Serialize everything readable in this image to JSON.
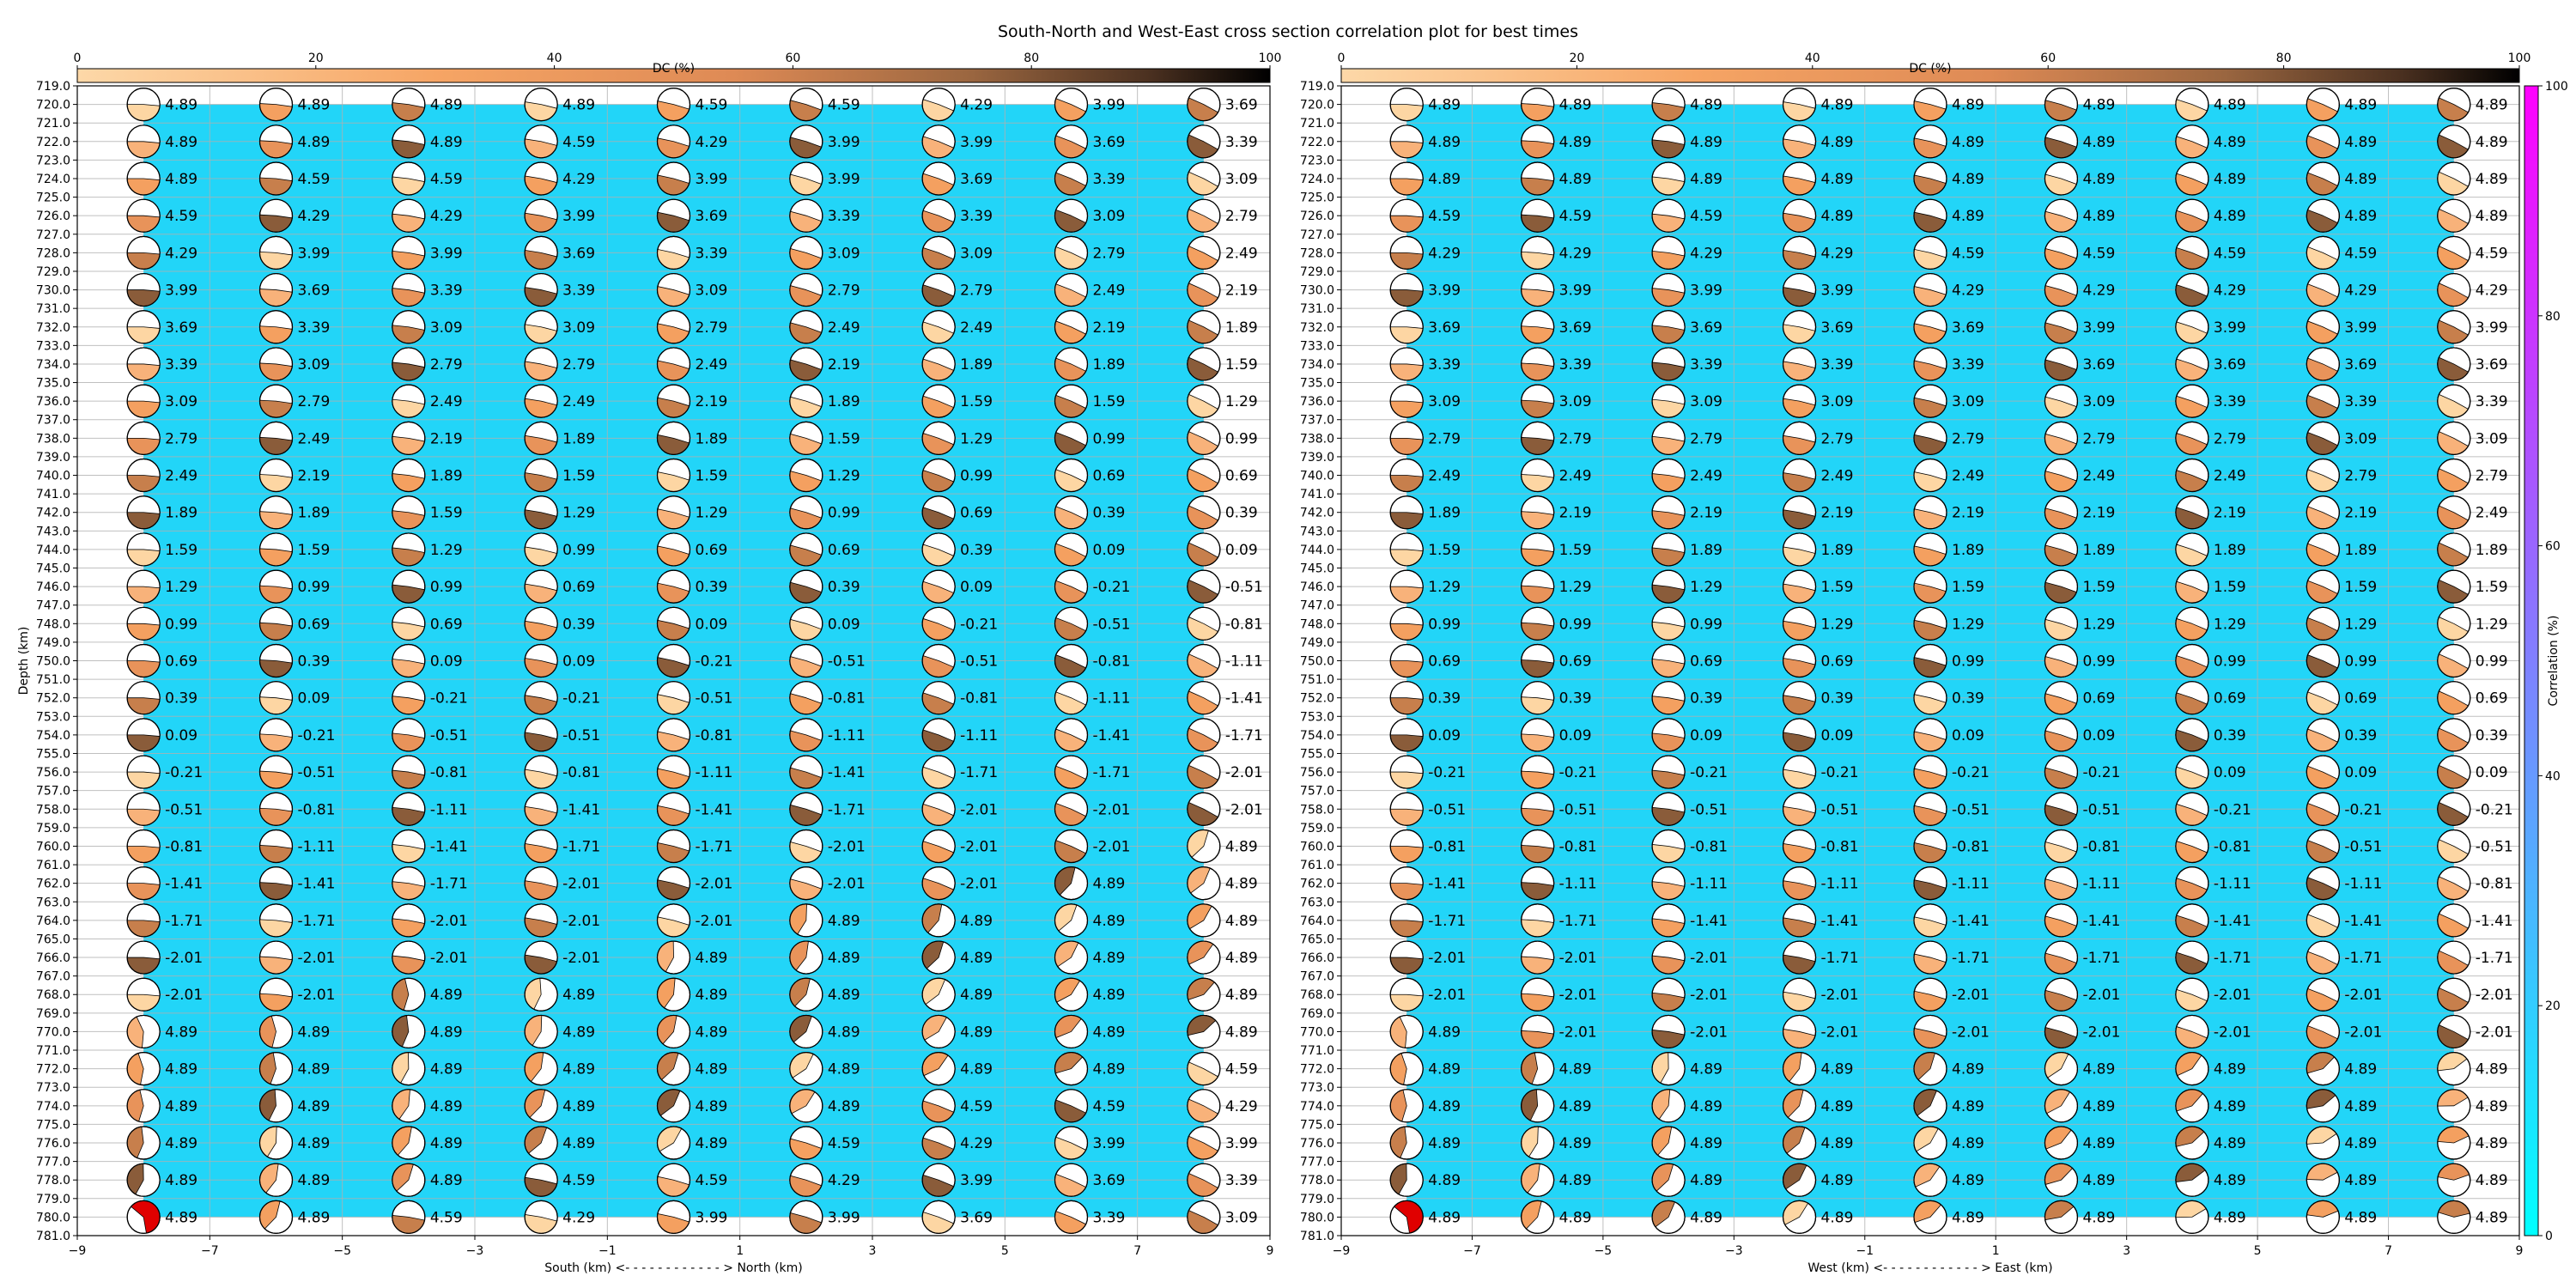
{
  "title": "South-North and West-East cross section correlation plot for best times",
  "colors": {
    "background": "#22d5f8",
    "dc_colormap": [
      "#fdd6a3",
      "#f5a060",
      "#e08a55",
      "#a06a40",
      "#5a3a25",
      "#000000"
    ],
    "correlation_colormap": [
      "#00ffff",
      "#ff00ff"
    ],
    "grid": "#b0b0b0",
    "best_event": "#e00000"
  },
  "chart_data": [
    {
      "type": "beachball-grid",
      "panel": "south-north",
      "xlabel": "South (km) <- - - - - - - - - - - - > North (km)",
      "ylabel": "Depth (km)",
      "xlim": [
        -9,
        9
      ],
      "ylim": [
        781,
        719
      ],
      "x_ticks": [
        "−9",
        "−7",
        "−5",
        "−3",
        "−1",
        "1",
        "3",
        "5",
        "7",
        "9"
      ],
      "y_ticks": [
        "719.0",
        "720.0",
        "721.0",
        "722.0",
        "723.0",
        "724.0",
        "725.0",
        "726.0",
        "727.0",
        "728.0",
        "729.0",
        "730.0",
        "731.0",
        "732.0",
        "733.0",
        "734.0",
        "735.0",
        "736.0",
        "737.0",
        "738.0",
        "739.0",
        "740.0",
        "741.0",
        "742.0",
        "743.0",
        "744.0",
        "745.0",
        "746.0",
        "747.0",
        "748.0",
        "749.0",
        "750.0",
        "751.0",
        "752.0",
        "753.0",
        "754.0",
        "755.0",
        "756.0",
        "757.0",
        "758.0",
        "759.0",
        "760.0",
        "761.0",
        "762.0",
        "763.0",
        "764.0",
        "765.0",
        "766.0",
        "767.0",
        "768.0",
        "769.0",
        "770.0",
        "771.0",
        "772.0",
        "773.0",
        "774.0",
        "775.0",
        "776.0",
        "777.0",
        "778.0",
        "779.0",
        "780.0",
        "781.0"
      ],
      "colorbar": {
        "label": "DC (%)",
        "ticks": [
          "0",
          "20",
          "40",
          "60",
          "80",
          "100"
        ]
      },
      "x": [
        -8,
        -6,
        -4,
        -2,
        0,
        2,
        4,
        6,
        8
      ],
      "depths": [
        720,
        722,
        724,
        726,
        728,
        730,
        732,
        734,
        736,
        738,
        740,
        742,
        744,
        746,
        748,
        750,
        752,
        754,
        756,
        758,
        760,
        762,
        764,
        766,
        768,
        770,
        772,
        774,
        776,
        778,
        780
      ],
      "time_labels": [
        [
          "4.89",
          "4.89",
          "4.89",
          "4.89",
          "4.59",
          "4.59",
          "4.29",
          "3.99",
          "3.69"
        ],
        [
          "4.89",
          "4.89",
          "4.89",
          "4.59",
          "4.29",
          "3.99",
          "3.99",
          "3.69",
          "3.39"
        ],
        [
          "4.89",
          "4.59",
          "4.59",
          "4.29",
          "3.99",
          "3.99",
          "3.69",
          "3.39",
          "3.09"
        ],
        [
          "4.59",
          "4.29",
          "4.29",
          "3.99",
          "3.69",
          "3.39",
          "3.39",
          "3.09",
          "2.79"
        ],
        [
          "4.29",
          "3.99",
          "3.99",
          "3.69",
          "3.39",
          "3.09",
          "3.09",
          "2.79",
          "2.49"
        ],
        [
          "3.99",
          "3.69",
          "3.39",
          "3.39",
          "3.09",
          "2.79",
          "2.79",
          "2.49",
          "2.19"
        ],
        [
          "3.69",
          "3.39",
          "3.09",
          "3.09",
          "2.79",
          "2.49",
          "2.49",
          "2.19",
          "1.89"
        ],
        [
          "3.39",
          "3.09",
          "2.79",
          "2.79",
          "2.49",
          "2.19",
          "1.89",
          "1.89",
          "1.59"
        ],
        [
          "3.09",
          "2.79",
          "2.49",
          "2.49",
          "2.19",
          "1.89",
          "1.59",
          "1.59",
          "1.29"
        ],
        [
          "2.79",
          "2.49",
          "2.19",
          "1.89",
          "1.89",
          "1.59",
          "1.29",
          "0.99",
          "0.99"
        ],
        [
          "2.49",
          "2.19",
          "1.89",
          "1.59",
          "1.59",
          "1.29",
          "0.99",
          "0.69",
          "0.69"
        ],
        [
          "1.89",
          "1.89",
          "1.59",
          "1.29",
          "1.29",
          "0.99",
          "0.69",
          "0.39",
          "0.39"
        ],
        [
          "1.59",
          "1.59",
          "1.29",
          "0.99",
          "0.69",
          "0.69",
          "0.39",
          "0.09",
          "0.09"
        ],
        [
          "1.29",
          "0.99",
          "0.99",
          "0.69",
          "0.39",
          "0.39",
          "0.09",
          "-0.21",
          "-0.51"
        ],
        [
          "0.99",
          "0.69",
          "0.69",
          "0.39",
          "0.09",
          "0.09",
          "-0.21",
          "-0.51",
          "-0.81"
        ],
        [
          "0.69",
          "0.39",
          "0.09",
          "0.09",
          "-0.21",
          "-0.51",
          "-0.51",
          "-0.81",
          "-1.11"
        ],
        [
          "0.39",
          "0.09",
          "-0.21",
          "-0.21",
          "-0.51",
          "-0.81",
          "-0.81",
          "-1.11",
          "-1.41"
        ],
        [
          "0.09",
          "-0.21",
          "-0.51",
          "-0.51",
          "-0.81",
          "-1.11",
          "-1.11",
          "-1.41",
          "-1.71"
        ],
        [
          "-0.21",
          "-0.51",
          "-0.81",
          "-0.81",
          "-1.11",
          "-1.41",
          "-1.71",
          "-1.71",
          "-2.01"
        ],
        [
          "-0.51",
          "-0.81",
          "-1.11",
          "-1.41",
          "-1.41",
          "-1.71",
          "-2.01",
          "-2.01",
          "-2.01"
        ],
        [
          "-0.81",
          "-1.11",
          "-1.41",
          "-1.71",
          "-1.71",
          "-2.01",
          "-2.01",
          "-2.01",
          "4.89"
        ],
        [
          "-1.41",
          "-1.41",
          "-1.71",
          "-2.01",
          "-2.01",
          "-2.01",
          "-2.01",
          "4.89",
          "4.89"
        ],
        [
          "-1.71",
          "-1.71",
          "-2.01",
          "-2.01",
          "-2.01",
          "4.89",
          "4.89",
          "4.89",
          "4.89"
        ],
        [
          "-2.01",
          "-2.01",
          "-2.01",
          "-2.01",
          "4.89",
          "4.89",
          "4.89",
          "4.89",
          "4.89"
        ],
        [
          "-2.01",
          "-2.01",
          "4.89",
          "4.89",
          "4.89",
          "4.89",
          "4.89",
          "4.89",
          "4.89"
        ],
        [
          "4.89",
          "4.89",
          "4.89",
          "4.89",
          "4.89",
          "4.89",
          "4.89",
          "4.89",
          "4.89"
        ],
        [
          "4.89",
          "4.89",
          "4.89",
          "4.89",
          "4.89",
          "4.89",
          "4.89",
          "4.89",
          "4.59"
        ],
        [
          "4.89",
          "4.89",
          "4.89",
          "4.89",
          "4.89",
          "4.89",
          "4.59",
          "4.59",
          "4.29"
        ],
        [
          "4.89",
          "4.89",
          "4.89",
          "4.89",
          "4.89",
          "4.59",
          "4.29",
          "3.99",
          "3.99"
        ],
        [
          "4.89",
          "4.89",
          "4.89",
          "4.59",
          "4.59",
          "4.29",
          "3.99",
          "3.69",
          "3.39"
        ],
        [
          "4.89",
          "4.89",
          "4.59",
          "4.29",
          "3.99",
          "3.99",
          "3.69",
          "3.39",
          "3.09"
        ]
      ]
    },
    {
      "type": "beachball-grid",
      "panel": "west-east",
      "xlabel": "West (km) <- - - - - - - - - - - - > East (km)",
      "ylabel": "",
      "xlim": [
        -9,
        9
      ],
      "ylim": [
        781,
        719
      ],
      "x_ticks": [
        "−9",
        "−7",
        "−5",
        "−3",
        "−1",
        "1",
        "3",
        "5",
        "7",
        "9"
      ],
      "y_ticks": [
        "719.0",
        "720.0",
        "721.0",
        "722.0",
        "723.0",
        "724.0",
        "725.0",
        "726.0",
        "727.0",
        "728.0",
        "729.0",
        "730.0",
        "731.0",
        "732.0",
        "733.0",
        "734.0",
        "735.0",
        "736.0",
        "737.0",
        "738.0",
        "739.0",
        "740.0",
        "741.0",
        "742.0",
        "743.0",
        "744.0",
        "745.0",
        "746.0",
        "747.0",
        "748.0",
        "749.0",
        "750.0",
        "751.0",
        "752.0",
        "753.0",
        "754.0",
        "755.0",
        "756.0",
        "757.0",
        "758.0",
        "759.0",
        "760.0",
        "761.0",
        "762.0",
        "763.0",
        "764.0",
        "765.0",
        "766.0",
        "767.0",
        "768.0",
        "769.0",
        "770.0",
        "771.0",
        "772.0",
        "773.0",
        "774.0",
        "775.0",
        "776.0",
        "777.0",
        "778.0",
        "779.0",
        "780.0",
        "781.0"
      ],
      "colorbar": {
        "label": "DC (%)",
        "ticks": [
          "0",
          "20",
          "40",
          "60",
          "80",
          "100"
        ]
      },
      "correlation_colorbar": {
        "label": "Correlation (%)",
        "ticks": [
          "0",
          "20",
          "40",
          "60",
          "80",
          "100"
        ]
      },
      "x": [
        -8,
        -6,
        -4,
        -2,
        0,
        2,
        4,
        6,
        8
      ],
      "depths": [
        720,
        722,
        724,
        726,
        728,
        730,
        732,
        734,
        736,
        738,
        740,
        742,
        744,
        746,
        748,
        750,
        752,
        754,
        756,
        758,
        760,
        762,
        764,
        766,
        768,
        770,
        772,
        774,
        776,
        778,
        780
      ],
      "time_labels": [
        [
          "4.89",
          "4.89",
          "4.89",
          "4.89",
          "4.89",
          "4.89",
          "4.89",
          "4.89",
          "4.89"
        ],
        [
          "4.89",
          "4.89",
          "4.89",
          "4.89",
          "4.89",
          "4.89",
          "4.89",
          "4.89",
          "4.89"
        ],
        [
          "4.89",
          "4.89",
          "4.89",
          "4.89",
          "4.89",
          "4.89",
          "4.89",
          "4.89",
          "4.89"
        ],
        [
          "4.59",
          "4.59",
          "4.59",
          "4.89",
          "4.89",
          "4.89",
          "4.89",
          "4.89",
          "4.89"
        ],
        [
          "4.29",
          "4.29",
          "4.29",
          "4.29",
          "4.59",
          "4.59",
          "4.59",
          "4.59",
          "4.59"
        ],
        [
          "3.99",
          "3.99",
          "3.99",
          "3.99",
          "4.29",
          "4.29",
          "4.29",
          "4.29",
          "4.29"
        ],
        [
          "3.69",
          "3.69",
          "3.69",
          "3.69",
          "3.69",
          "3.99",
          "3.99",
          "3.99",
          "3.99"
        ],
        [
          "3.39",
          "3.39",
          "3.39",
          "3.39",
          "3.39",
          "3.69",
          "3.69",
          "3.69",
          "3.69"
        ],
        [
          "3.09",
          "3.09",
          "3.09",
          "3.09",
          "3.09",
          "3.09",
          "3.39",
          "3.39",
          "3.39"
        ],
        [
          "2.79",
          "2.79",
          "2.79",
          "2.79",
          "2.79",
          "2.79",
          "2.79",
          "3.09",
          "3.09"
        ],
        [
          "2.49",
          "2.49",
          "2.49",
          "2.49",
          "2.49",
          "2.49",
          "2.49",
          "2.79",
          "2.79"
        ],
        [
          "1.89",
          "2.19",
          "2.19",
          "2.19",
          "2.19",
          "2.19",
          "2.19",
          "2.19",
          "2.49"
        ],
        [
          "1.59",
          "1.59",
          "1.89",
          "1.89",
          "1.89",
          "1.89",
          "1.89",
          "1.89",
          "1.89"
        ],
        [
          "1.29",
          "1.29",
          "1.29",
          "1.59",
          "1.59",
          "1.59",
          "1.59",
          "1.59",
          "1.59"
        ],
        [
          "0.99",
          "0.99",
          "0.99",
          "1.29",
          "1.29",
          "1.29",
          "1.29",
          "1.29",
          "1.29"
        ],
        [
          "0.69",
          "0.69",
          "0.69",
          "0.69",
          "0.99",
          "0.99",
          "0.99",
          "0.99",
          "0.99"
        ],
        [
          "0.39",
          "0.39",
          "0.39",
          "0.39",
          "0.39",
          "0.69",
          "0.69",
          "0.69",
          "0.69"
        ],
        [
          "0.09",
          "0.09",
          "0.09",
          "0.09",
          "0.09",
          "0.09",
          "0.39",
          "0.39",
          "0.39"
        ],
        [
          "-0.21",
          "-0.21",
          "-0.21",
          "-0.21",
          "-0.21",
          "-0.21",
          "0.09",
          "0.09",
          "0.09"
        ],
        [
          "-0.51",
          "-0.51",
          "-0.51",
          "-0.51",
          "-0.51",
          "-0.51",
          "-0.21",
          "-0.21",
          "-0.21"
        ],
        [
          "-0.81",
          "-0.81",
          "-0.81",
          "-0.81",
          "-0.81",
          "-0.81",
          "-0.81",
          "-0.51",
          "-0.51"
        ],
        [
          "-1.41",
          "-1.11",
          "-1.11",
          "-1.11",
          "-1.11",
          "-1.11",
          "-1.11",
          "-1.11",
          "-0.81"
        ],
        [
          "-1.71",
          "-1.71",
          "-1.41",
          "-1.41",
          "-1.41",
          "-1.41",
          "-1.41",
          "-1.41",
          "-1.41"
        ],
        [
          "-2.01",
          "-2.01",
          "-2.01",
          "-1.71",
          "-1.71",
          "-1.71",
          "-1.71",
          "-1.71",
          "-1.71"
        ],
        [
          "-2.01",
          "-2.01",
          "-2.01",
          "-2.01",
          "-2.01",
          "-2.01",
          "-2.01",
          "-2.01",
          "-2.01"
        ],
        [
          "4.89",
          "-2.01",
          "-2.01",
          "-2.01",
          "-2.01",
          "-2.01",
          "-2.01",
          "-2.01",
          "-2.01"
        ],
        [
          "4.89",
          "4.89",
          "4.89",
          "4.89",
          "4.89",
          "4.89",
          "4.89",
          "4.89",
          "4.89"
        ],
        [
          "4.89",
          "4.89",
          "4.89",
          "4.89",
          "4.89",
          "4.89",
          "4.89",
          "4.89",
          "4.89"
        ],
        [
          "4.89",
          "4.89",
          "4.89",
          "4.89",
          "4.89",
          "4.89",
          "4.89",
          "4.89",
          "4.89"
        ],
        [
          "4.89",
          "4.89",
          "4.89",
          "4.89",
          "4.89",
          "4.89",
          "4.89",
          "4.89",
          "4.89"
        ],
        [
          "4.89",
          "4.89",
          "4.89",
          "4.89",
          "4.89",
          "4.89",
          "4.89",
          "4.89",
          "4.89"
        ]
      ]
    }
  ]
}
